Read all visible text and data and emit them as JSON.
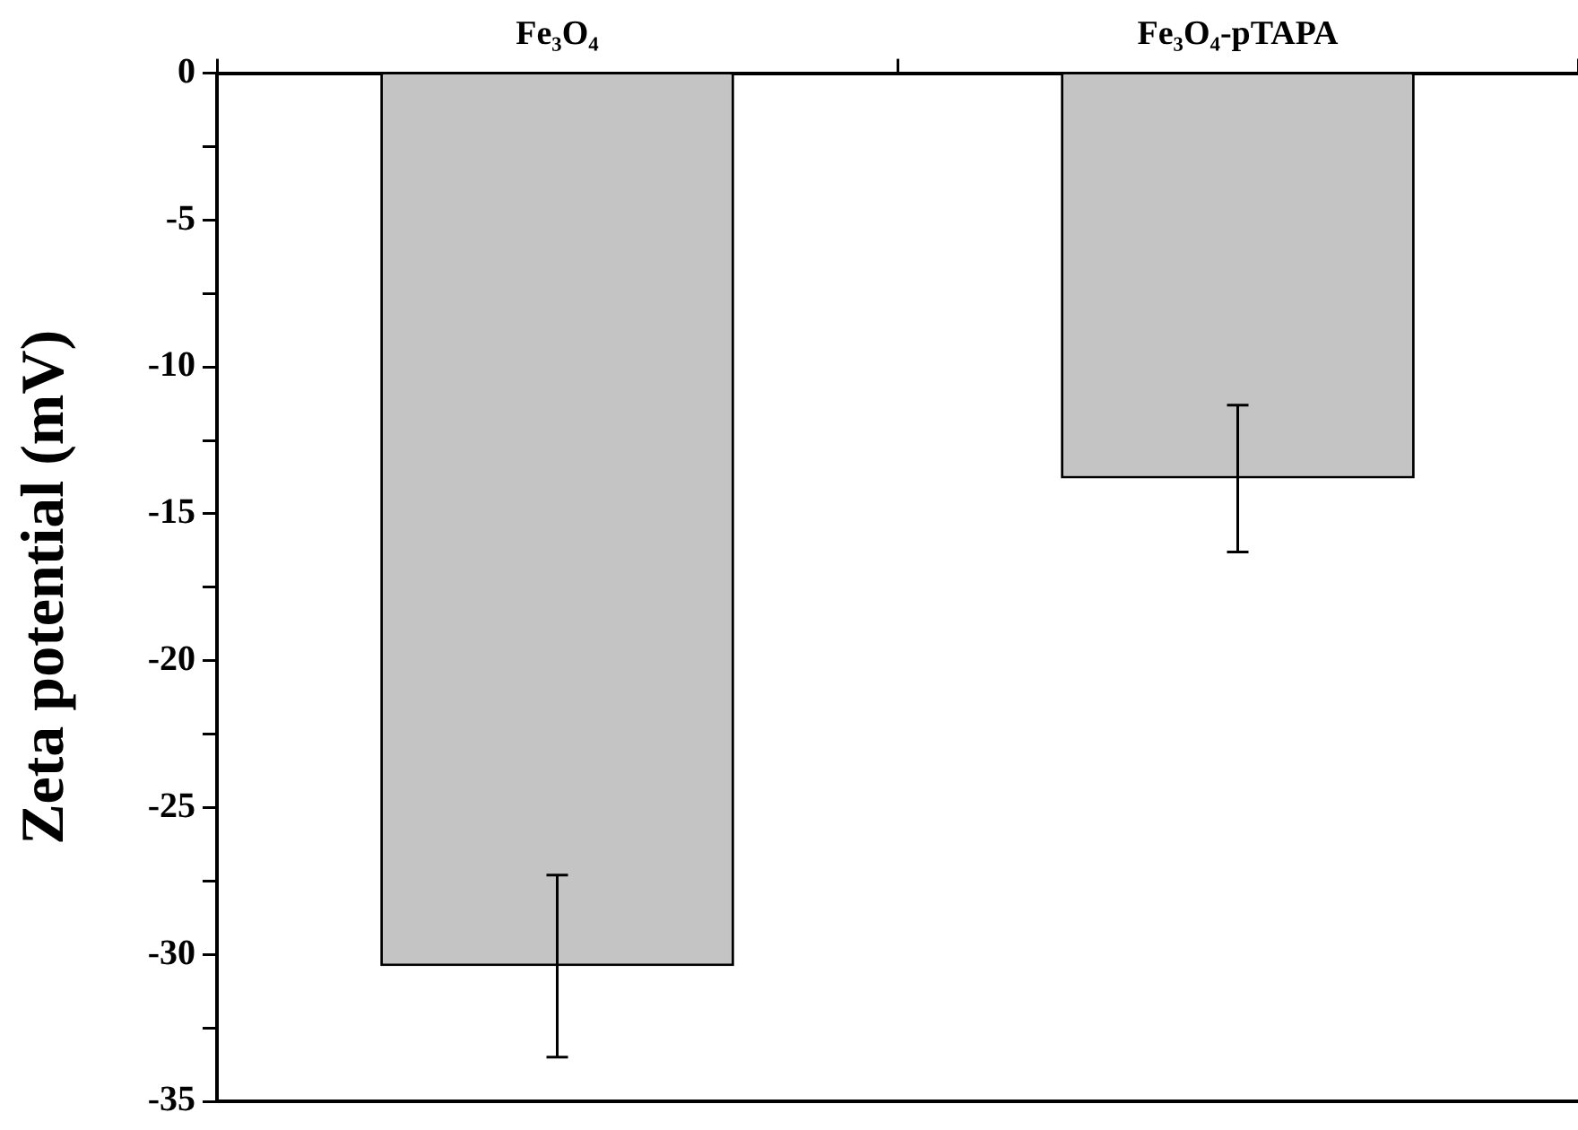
{
  "chart_data": {
    "type": "bar",
    "ylabel": "Zeta potential (mV)",
    "categories": [
      "Fe₃O₄",
      "Fe₃O₄-pTAPA"
    ],
    "values": [
      -30.4,
      -13.8
    ],
    "color": "#c4c4c4",
    "errors": [
      3.1,
      2.5
    ],
    "ylim": [
      -35,
      0
    ],
    "yticks": [
      -35,
      {
        "value": -32.5,
        "label": null
      },
      -30,
      {
        "value": -27.5,
        "label": null
      },
      -25,
      {
        "value": -22.5,
        "label": null
      },
      -20,
      {
        "value": -17.5,
        "label": null
      },
      -15,
      {
        "value": -12.5,
        "label": null
      },
      -10,
      {
        "value": -7.5,
        "label": null
      },
      -5,
      {
        "value": -2.5,
        "label": null
      },
      0
    ],
    "grid": false,
    "legend": false
  }
}
